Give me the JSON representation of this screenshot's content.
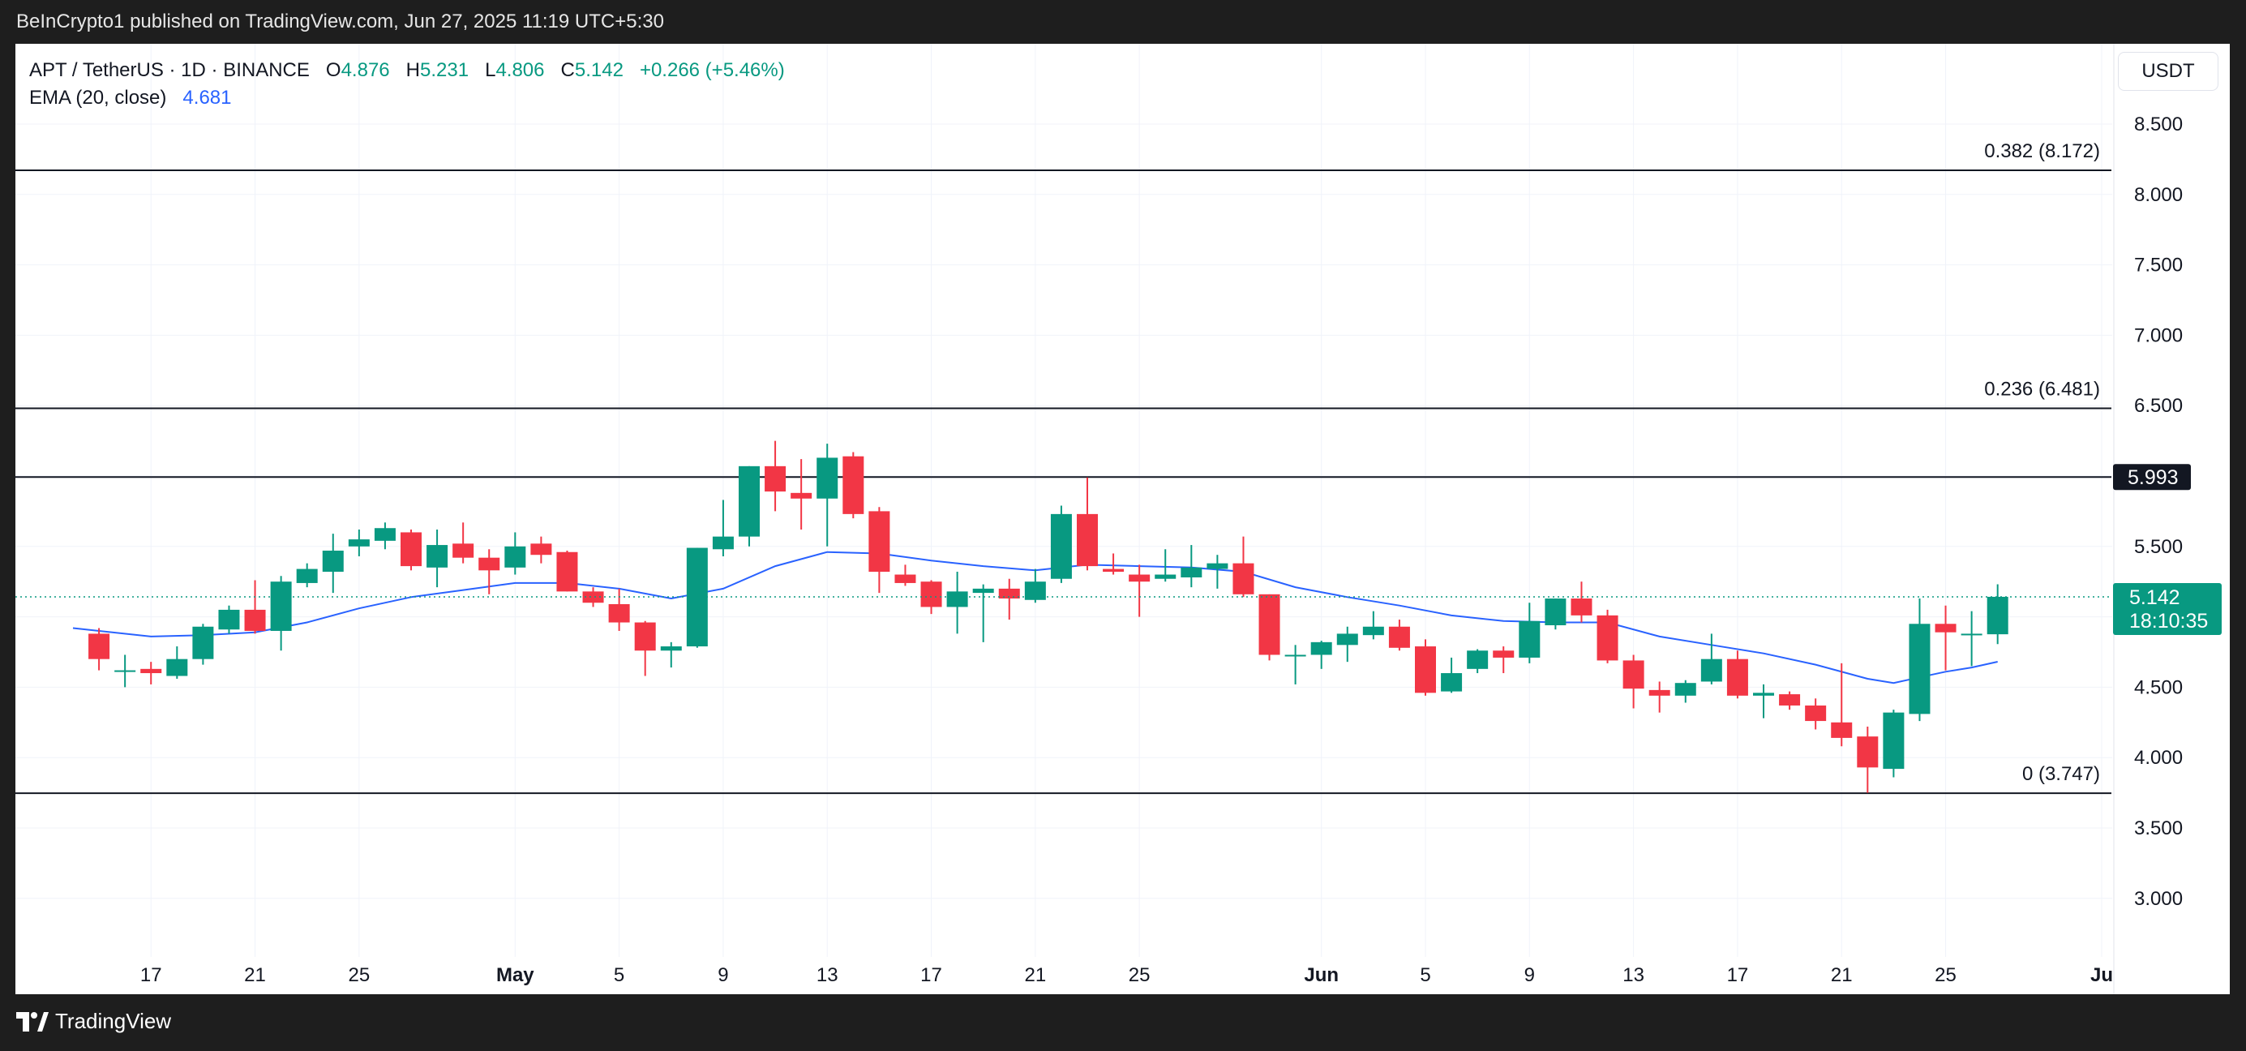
{
  "header": {
    "published": "BeInCrypto1 published on TradingView.com, Jun 27, 2025 11:19 UTC+5:30"
  },
  "legend": {
    "symbol": "APT / TetherUS · 1D · BINANCE",
    "o_label": "O",
    "o_value": "4.876",
    "h_label": "H",
    "h_value": "5.231",
    "l_label": "L",
    "l_value": "4.806",
    "c_label": "C",
    "c_value": "5.142",
    "change": "+0.266 (+5.46%)",
    "ema_label": "EMA (20, close)",
    "ema_value": "4.681"
  },
  "currency_button": "USDT",
  "footer": {
    "brand": "TradingView"
  },
  "colors": {
    "up": "#089981",
    "down": "#f23645",
    "ema": "#2962ff",
    "level": "#131722"
  },
  "chart_data": {
    "type": "candlestick",
    "y_axis_ticks": [
      "8.500",
      "8.000",
      "7.500",
      "7.000",
      "6.500",
      "6.000",
      "5.500",
      "5.000",
      "4.500",
      "4.000",
      "3.500",
      "3.000"
    ],
    "ylim": [
      2.65,
      8.9
    ],
    "x_tick_labels": [
      {
        "date": "2025-04-17",
        "label": "17",
        "bold": false
      },
      {
        "date": "2025-04-21",
        "label": "21",
        "bold": false
      },
      {
        "date": "2025-04-25",
        "label": "25",
        "bold": false
      },
      {
        "date": "2025-05-01",
        "label": "May",
        "bold": true
      },
      {
        "date": "2025-05-05",
        "label": "5",
        "bold": false
      },
      {
        "date": "2025-05-09",
        "label": "9",
        "bold": false
      },
      {
        "date": "2025-05-13",
        "label": "13",
        "bold": false
      },
      {
        "date": "2025-05-17",
        "label": "17",
        "bold": false
      },
      {
        "date": "2025-05-21",
        "label": "21",
        "bold": false
      },
      {
        "date": "2025-05-25",
        "label": "25",
        "bold": false
      },
      {
        "date": "2025-06-01",
        "label": "Jun",
        "bold": true
      },
      {
        "date": "2025-06-05",
        "label": "5",
        "bold": false
      },
      {
        "date": "2025-06-09",
        "label": "9",
        "bold": false
      },
      {
        "date": "2025-06-13",
        "label": "13",
        "bold": false
      },
      {
        "date": "2025-06-17",
        "label": "17",
        "bold": false
      },
      {
        "date": "2025-06-21",
        "label": "21",
        "bold": false
      },
      {
        "date": "2025-06-25",
        "label": "25",
        "bold": false
      },
      {
        "date": "2025-07-01",
        "label": "Ju",
        "bold": true
      }
    ],
    "x_range": [
      "2025-04-14",
      "2025-07-01"
    ],
    "candles": [
      {
        "d": "2025-04-15",
        "o": 4.88,
        "h": 4.92,
        "l": 4.62,
        "c": 4.7
      },
      {
        "d": "2025-04-16",
        "o": 4.62,
        "h": 4.73,
        "l": 4.5,
        "c": 4.62
      },
      {
        "d": "2025-04-17",
        "o": 4.63,
        "h": 4.68,
        "l": 4.52,
        "c": 4.6
      },
      {
        "d": "2025-04-18",
        "o": 4.58,
        "h": 4.79,
        "l": 4.56,
        "c": 4.7
      },
      {
        "d": "2025-04-19",
        "o": 4.7,
        "h": 4.95,
        "l": 4.66,
        "c": 4.93
      },
      {
        "d": "2025-04-20",
        "o": 4.91,
        "h": 5.08,
        "l": 4.88,
        "c": 5.05
      },
      {
        "d": "2025-04-21",
        "o": 5.05,
        "h": 5.26,
        "l": 4.88,
        "c": 4.9
      },
      {
        "d": "2025-04-22",
        "o": 4.9,
        "h": 5.29,
        "l": 4.76,
        "c": 5.25
      },
      {
        "d": "2025-04-23",
        "o": 5.24,
        "h": 5.38,
        "l": 5.21,
        "c": 5.34
      },
      {
        "d": "2025-04-24",
        "o": 5.32,
        "h": 5.59,
        "l": 5.17,
        "c": 5.47
      },
      {
        "d": "2025-04-25",
        "o": 5.5,
        "h": 5.62,
        "l": 5.43,
        "c": 5.55
      },
      {
        "d": "2025-04-26",
        "o": 5.54,
        "h": 5.67,
        "l": 5.48,
        "c": 5.63
      },
      {
        "d": "2025-04-27",
        "o": 5.6,
        "h": 5.62,
        "l": 5.33,
        "c": 5.36
      },
      {
        "d": "2025-04-28",
        "o": 5.35,
        "h": 5.62,
        "l": 5.21,
        "c": 5.51
      },
      {
        "d": "2025-04-29",
        "o": 5.52,
        "h": 5.67,
        "l": 5.38,
        "c": 5.42
      },
      {
        "d": "2025-04-30",
        "o": 5.42,
        "h": 5.48,
        "l": 5.16,
        "c": 5.33
      },
      {
        "d": "2025-05-01",
        "o": 5.35,
        "h": 5.6,
        "l": 5.3,
        "c": 5.5
      },
      {
        "d": "2025-05-02",
        "o": 5.52,
        "h": 5.57,
        "l": 5.38,
        "c": 5.44
      },
      {
        "d": "2025-05-03",
        "o": 5.46,
        "h": 5.47,
        "l": 5.18,
        "c": 5.18
      },
      {
        "d": "2025-05-04",
        "o": 5.18,
        "h": 5.21,
        "l": 5.07,
        "c": 5.1
      },
      {
        "d": "2025-05-05",
        "o": 5.09,
        "h": 5.2,
        "l": 4.9,
        "c": 4.96
      },
      {
        "d": "2025-05-06",
        "o": 4.96,
        "h": 4.97,
        "l": 4.58,
        "c": 4.76
      },
      {
        "d": "2025-05-07",
        "o": 4.76,
        "h": 4.82,
        "l": 4.64,
        "c": 4.79
      },
      {
        "d": "2025-05-08",
        "o": 4.79,
        "h": 5.49,
        "l": 4.78,
        "c": 5.49
      },
      {
        "d": "2025-05-09",
        "o": 5.48,
        "h": 5.83,
        "l": 5.43,
        "c": 5.57
      },
      {
        "d": "2025-05-10",
        "o": 5.57,
        "h": 6.07,
        "l": 5.5,
        "c": 6.07
      },
      {
        "d": "2025-05-11",
        "o": 6.07,
        "h": 6.25,
        "l": 5.75,
        "c": 5.89
      },
      {
        "d": "2025-05-12",
        "o": 5.88,
        "h": 6.12,
        "l": 5.62,
        "c": 5.84
      },
      {
        "d": "2025-05-13",
        "o": 5.84,
        "h": 6.23,
        "l": 5.5,
        "c": 6.13
      },
      {
        "d": "2025-05-14",
        "o": 6.14,
        "h": 6.17,
        "l": 5.7,
        "c": 5.73
      },
      {
        "d": "2025-05-15",
        "o": 5.75,
        "h": 5.78,
        "l": 5.17,
        "c": 5.32
      },
      {
        "d": "2025-05-16",
        "o": 5.3,
        "h": 5.37,
        "l": 5.22,
        "c": 5.24
      },
      {
        "d": "2025-05-17",
        "o": 5.25,
        "h": 5.26,
        "l": 5.02,
        "c": 5.07
      },
      {
        "d": "2025-05-18",
        "o": 5.07,
        "h": 5.32,
        "l": 4.88,
        "c": 5.18
      },
      {
        "d": "2025-05-19",
        "o": 5.17,
        "h": 5.23,
        "l": 4.82,
        "c": 5.2
      },
      {
        "d": "2025-05-20",
        "o": 5.2,
        "h": 5.27,
        "l": 4.98,
        "c": 5.13
      },
      {
        "d": "2025-05-21",
        "o": 5.12,
        "h": 5.34,
        "l": 5.1,
        "c": 5.25
      },
      {
        "d": "2025-05-22",
        "o": 5.27,
        "h": 5.79,
        "l": 5.24,
        "c": 5.73
      },
      {
        "d": "2025-05-23",
        "o": 5.73,
        "h": 5.99,
        "l": 5.33,
        "c": 5.36
      },
      {
        "d": "2025-05-24",
        "o": 5.34,
        "h": 5.45,
        "l": 5.3,
        "c": 5.32
      },
      {
        "d": "2025-05-25",
        "o": 5.3,
        "h": 5.37,
        "l": 5.0,
        "c": 5.25
      },
      {
        "d": "2025-05-26",
        "o": 5.27,
        "h": 5.48,
        "l": 5.25,
        "c": 5.3
      },
      {
        "d": "2025-05-27",
        "o": 5.28,
        "h": 5.51,
        "l": 5.21,
        "c": 5.35
      },
      {
        "d": "2025-05-28",
        "o": 5.34,
        "h": 5.44,
        "l": 5.2,
        "c": 5.38
      },
      {
        "d": "2025-05-29",
        "o": 5.38,
        "h": 5.57,
        "l": 5.14,
        "c": 5.16
      },
      {
        "d": "2025-05-30",
        "o": 5.16,
        "h": 5.16,
        "l": 4.69,
        "c": 4.73
      },
      {
        "d": "2025-05-31",
        "o": 4.73,
        "h": 4.8,
        "l": 4.52,
        "c": 4.73
      },
      {
        "d": "2025-06-01",
        "o": 4.73,
        "h": 4.83,
        "l": 4.63,
        "c": 4.82
      },
      {
        "d": "2025-06-02",
        "o": 4.8,
        "h": 4.93,
        "l": 4.68,
        "c": 4.88
      },
      {
        "d": "2025-06-03",
        "o": 4.87,
        "h": 5.04,
        "l": 4.84,
        "c": 4.93
      },
      {
        "d": "2025-06-04",
        "o": 4.93,
        "h": 4.98,
        "l": 4.76,
        "c": 4.78
      },
      {
        "d": "2025-06-05",
        "o": 4.79,
        "h": 4.84,
        "l": 4.44,
        "c": 4.46
      },
      {
        "d": "2025-06-06",
        "o": 4.47,
        "h": 4.71,
        "l": 4.46,
        "c": 4.6
      },
      {
        "d": "2025-06-07",
        "o": 4.63,
        "h": 4.77,
        "l": 4.6,
        "c": 4.76
      },
      {
        "d": "2025-06-08",
        "o": 4.76,
        "h": 4.79,
        "l": 4.6,
        "c": 4.71
      },
      {
        "d": "2025-06-09",
        "o": 4.71,
        "h": 5.1,
        "l": 4.67,
        "c": 4.97
      },
      {
        "d": "2025-06-10",
        "o": 4.94,
        "h": 5.13,
        "l": 4.91,
        "c": 5.13
      },
      {
        "d": "2025-06-11",
        "o": 5.13,
        "h": 5.25,
        "l": 4.96,
        "c": 5.01
      },
      {
        "d": "2025-06-12",
        "o": 5.01,
        "h": 5.05,
        "l": 4.67,
        "c": 4.69
      },
      {
        "d": "2025-06-13",
        "o": 4.69,
        "h": 4.73,
        "l": 4.35,
        "c": 4.49
      },
      {
        "d": "2025-06-14",
        "o": 4.48,
        "h": 4.54,
        "l": 4.32,
        "c": 4.44
      },
      {
        "d": "2025-06-15",
        "o": 4.44,
        "h": 4.55,
        "l": 4.39,
        "c": 4.53
      },
      {
        "d": "2025-06-16",
        "o": 4.54,
        "h": 4.88,
        "l": 4.52,
        "c": 4.7
      },
      {
        "d": "2025-06-17",
        "o": 4.7,
        "h": 4.76,
        "l": 4.42,
        "c": 4.44
      },
      {
        "d": "2025-06-18",
        "o": 4.44,
        "h": 4.52,
        "l": 4.28,
        "c": 4.46
      },
      {
        "d": "2025-06-19",
        "o": 4.45,
        "h": 4.47,
        "l": 4.34,
        "c": 4.37
      },
      {
        "d": "2025-06-20",
        "o": 4.37,
        "h": 4.42,
        "l": 4.2,
        "c": 4.26
      },
      {
        "d": "2025-06-21",
        "o": 4.25,
        "h": 4.67,
        "l": 4.08,
        "c": 4.14
      },
      {
        "d": "2025-06-22",
        "o": 4.15,
        "h": 4.22,
        "l": 3.75,
        "c": 3.93
      },
      {
        "d": "2025-06-23",
        "o": 3.92,
        "h": 4.34,
        "l": 3.86,
        "c": 4.32
      },
      {
        "d": "2025-06-24",
        "o": 4.31,
        "h": 5.13,
        "l": 4.26,
        "c": 4.95
      },
      {
        "d": "2025-06-25",
        "o": 4.95,
        "h": 5.08,
        "l": 4.62,
        "c": 4.89
      },
      {
        "d": "2025-06-26",
        "o": 4.88,
        "h": 5.04,
        "l": 4.65,
        "c": 4.88
      },
      {
        "d": "2025-06-27",
        "o": 4.876,
        "h": 5.231,
        "l": 4.806,
        "c": 5.142
      }
    ],
    "ema": [
      {
        "d": "2025-04-14",
        "v": 4.92
      },
      {
        "d": "2025-04-17",
        "v": 4.86
      },
      {
        "d": "2025-04-19",
        "v": 4.87
      },
      {
        "d": "2025-04-21",
        "v": 4.89
      },
      {
        "d": "2025-04-23",
        "v": 4.96
      },
      {
        "d": "2025-04-25",
        "v": 5.06
      },
      {
        "d": "2025-04-27",
        "v": 5.14
      },
      {
        "d": "2025-04-29",
        "v": 5.19
      },
      {
        "d": "2025-05-01",
        "v": 5.24
      },
      {
        "d": "2025-05-03",
        "v": 5.24
      },
      {
        "d": "2025-05-05",
        "v": 5.2
      },
      {
        "d": "2025-05-07",
        "v": 5.13
      },
      {
        "d": "2025-05-09",
        "v": 5.2
      },
      {
        "d": "2025-05-11",
        "v": 5.36
      },
      {
        "d": "2025-05-13",
        "v": 5.46
      },
      {
        "d": "2025-05-15",
        "v": 5.45
      },
      {
        "d": "2025-05-17",
        "v": 5.4
      },
      {
        "d": "2025-05-19",
        "v": 5.36
      },
      {
        "d": "2025-05-21",
        "v": 5.33
      },
      {
        "d": "2025-05-23",
        "v": 5.37
      },
      {
        "d": "2025-05-25",
        "v": 5.36
      },
      {
        "d": "2025-05-27",
        "v": 5.35
      },
      {
        "d": "2025-05-29",
        "v": 5.32
      },
      {
        "d": "2025-05-31",
        "v": 5.21
      },
      {
        "d": "2025-06-02",
        "v": 5.14
      },
      {
        "d": "2025-06-04",
        "v": 5.08
      },
      {
        "d": "2025-06-06",
        "v": 5.01
      },
      {
        "d": "2025-06-08",
        "v": 4.97
      },
      {
        "d": "2025-06-10",
        "v": 4.96
      },
      {
        "d": "2025-06-12",
        "v": 4.96
      },
      {
        "d": "2025-06-14",
        "v": 4.86
      },
      {
        "d": "2025-06-16",
        "v": 4.8
      },
      {
        "d": "2025-06-18",
        "v": 4.74
      },
      {
        "d": "2025-06-20",
        "v": 4.66
      },
      {
        "d": "2025-06-22",
        "v": 4.56
      },
      {
        "d": "2025-06-23",
        "v": 4.53
      },
      {
        "d": "2025-06-24",
        "v": 4.57
      },
      {
        "d": "2025-06-25",
        "v": 4.61
      },
      {
        "d": "2025-06-26",
        "v": 4.64
      },
      {
        "d": "2025-06-27",
        "v": 4.681
      }
    ],
    "levels": [
      {
        "value": 8.172,
        "label": "0.382 (8.172)"
      },
      {
        "value": 6.481,
        "label": "0.236 (6.481)"
      },
      {
        "value": 5.993,
        "label": ""
      },
      {
        "value": 3.747,
        "label": "0 (3.747)"
      }
    ],
    "marker_5993": "5.993",
    "last_price": "5.142",
    "last_price_value": 5.142,
    "countdown": "18:10:35"
  }
}
